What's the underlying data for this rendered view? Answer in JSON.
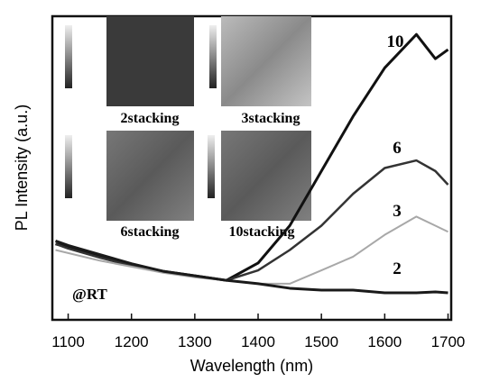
{
  "chart_data": {
    "type": "line",
    "x_label": "Wavelength (nm)",
    "y_label": "PL Intensity (a.u.)",
    "x": [
      1080,
      1100,
      1150,
      1200,
      1250,
      1300,
      1350,
      1400,
      1450,
      1500,
      1550,
      1600,
      1650,
      1680,
      1700
    ],
    "series": [
      {
        "name": "10",
        "color": "#111111",
        "values": [
          2.5,
          2.4,
          2.1,
          1.8,
          1.6,
          1.45,
          1.3,
          1.87,
          3.1,
          4.9,
          6.7,
          8.3,
          9.4,
          8.6,
          8.9
        ]
      },
      {
        "name": "6",
        "color": "#333333",
        "values": [
          2.5,
          2.35,
          2.05,
          1.78,
          1.58,
          1.45,
          1.3,
          1.63,
          2.3,
          3.1,
          4.15,
          5.0,
          5.25,
          4.9,
          4.45
        ]
      },
      {
        "name": "3",
        "color": "#a8a8a8",
        "values": [
          2.3,
          2.2,
          1.95,
          1.75,
          1.55,
          1.4,
          1.3,
          1.19,
          1.19,
          1.63,
          2.08,
          2.8,
          3.4,
          3.1,
          2.9
        ]
      },
      {
        "name": "2",
        "color": "#1a1a1a",
        "values": [
          2.6,
          2.45,
          2.15,
          1.85,
          1.6,
          1.45,
          1.3,
          1.19,
          1.04,
          0.98,
          0.98,
          0.89,
          0.89,
          0.92,
          0.89
        ]
      }
    ],
    "xlim": [
      1075,
      1705
    ],
    "xticks": [
      1100,
      1200,
      1300,
      1400,
      1500,
      1600,
      1700
    ],
    "ylim": [
      0,
      10
    ],
    "annotation": "@RT",
    "insets": [
      "2stacking",
      "3stacking",
      "6stacking",
      "10stacking"
    ]
  }
}
